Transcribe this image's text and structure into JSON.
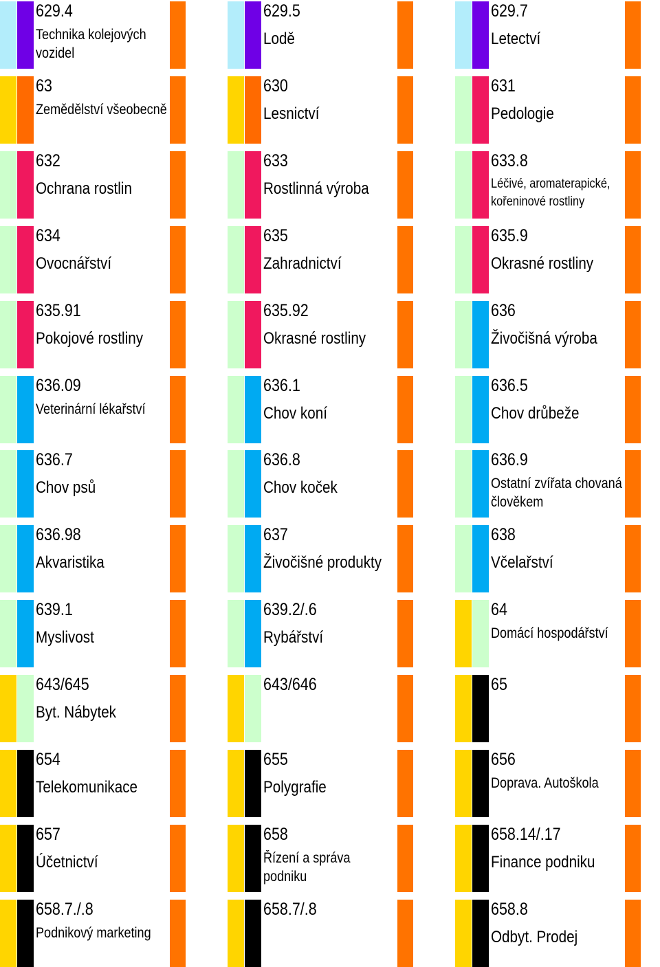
{
  "colors": {
    "light_blue": "#B3EDFB",
    "violet": "#6F00E6",
    "yellow": "#FFD500",
    "dark_orange": "#FF6A00",
    "light_green": "#CCFFCC",
    "crimson": "#F0185E",
    "sky_blue": "#00AAF2",
    "black": "#000000",
    "tab_orange": "#FF7300"
  },
  "cells": [
    {
      "code": "629.4",
      "name": "Technika kolejových vozidel",
      "size": "sm",
      "outer": "light_blue",
      "inner": "violet"
    },
    {
      "code": "629.5",
      "name": "Lodě",
      "size": "",
      "outer": "light_blue",
      "inner": "violet"
    },
    {
      "code": "629.7",
      "name": "Letectví",
      "size": "",
      "outer": "light_blue",
      "inner": "violet"
    },
    {
      "code": "63",
      "name": "Zemědělství všeobecně",
      "size": "sm",
      "outer": "yellow",
      "inner": "dark_orange"
    },
    {
      "code": "630",
      "name": "Lesnictví",
      "size": "",
      "outer": "yellow",
      "inner": "dark_orange"
    },
    {
      "code": "631",
      "name": "Pedologie",
      "size": "",
      "outer": "light_green",
      "inner": "crimson"
    },
    {
      "code": "632",
      "name": "Ochrana rostlin",
      "size": "",
      "outer": "light_green",
      "inner": "crimson"
    },
    {
      "code": "633",
      "name": "Rostlinná výroba",
      "size": "",
      "outer": "light_green",
      "inner": "crimson"
    },
    {
      "code": "633.8",
      "name": "Léčivé, aromaterapické, kořeninové rostliny",
      "size": "xs",
      "outer": "light_green",
      "inner": "crimson"
    },
    {
      "code": "634",
      "name": "Ovocnářství",
      "size": "",
      "outer": "light_green",
      "inner": "crimson"
    },
    {
      "code": "635",
      "name": "Zahradnictví",
      "size": "",
      "outer": "light_green",
      "inner": "crimson"
    },
    {
      "code": "635.9",
      "name": "Okrasné rostliny",
      "size": "",
      "outer": "light_green",
      "inner": "crimson"
    },
    {
      "code": "635.91",
      "name": "Pokojové rostliny",
      "size": "",
      "outer": "light_green",
      "inner": "crimson"
    },
    {
      "code": "635.92",
      "name": "Okrasné rostliny",
      "size": "",
      "outer": "light_green",
      "inner": "crimson"
    },
    {
      "code": "636",
      "name": "Živočišná výroba",
      "size": "",
      "outer": "light_green",
      "inner": "sky_blue"
    },
    {
      "code": "636.09",
      "name": "Veterinární lékařství",
      "size": "sm",
      "outer": "light_green",
      "inner": "sky_blue"
    },
    {
      "code": "636.1",
      "name": "Chov koní",
      "size": "",
      "outer": "light_green",
      "inner": "sky_blue"
    },
    {
      "code": "636.5",
      "name": "Chov drůbeže",
      "size": "",
      "outer": "light_green",
      "inner": "sky_blue"
    },
    {
      "code": "636.7",
      "name": "Chov psů",
      "size": "",
      "outer": "light_green",
      "inner": "sky_blue"
    },
    {
      "code": "636.8",
      "name": "Chov koček",
      "size": "",
      "outer": "light_green",
      "inner": "sky_blue"
    },
    {
      "code": "636.9",
      "name": "Ostatní zvířata chovaná člověkem",
      "size": "sm",
      "outer": "light_green",
      "inner": "sky_blue"
    },
    {
      "code": "636.98",
      "name": "Akvaristika",
      "size": "",
      "outer": "light_green",
      "inner": "sky_blue"
    },
    {
      "code": "637",
      "name": "Živočišné produkty",
      "size": "",
      "outer": "light_green",
      "inner": "sky_blue"
    },
    {
      "code": "638",
      "name": "Včelařství",
      "size": "",
      "outer": "light_green",
      "inner": "sky_blue"
    },
    {
      "code": "639.1",
      "name": "Myslivost",
      "size": "",
      "outer": "light_green",
      "inner": "sky_blue"
    },
    {
      "code": "639.2/.6",
      "name": "Rybářství",
      "size": "",
      "outer": "light_green",
      "inner": "sky_blue"
    },
    {
      "code": "64",
      "name": "Domácí hospodářství",
      "size": "sm",
      "outer": "yellow",
      "inner": "light_green"
    },
    {
      "code": "643/645",
      "name": "Byt. Nábytek",
      "size": "",
      "outer": "yellow",
      "inner": "light_green"
    },
    {
      "code": "643/646",
      "name": "",
      "size": "",
      "outer": "yellow",
      "inner": "light_green"
    },
    {
      "code": "65",
      "name": "",
      "size": "",
      "outer": "yellow",
      "inner": "black"
    },
    {
      "code": "654",
      "name": "Telekomunikace",
      "size": "",
      "outer": "yellow",
      "inner": "black"
    },
    {
      "code": "655",
      "name": "Polygrafie",
      "size": "",
      "outer": "yellow",
      "inner": "black"
    },
    {
      "code": "656",
      "name": "Doprava. Autoškola",
      "size": "sm",
      "outer": "yellow",
      "inner": "black"
    },
    {
      "code": "657",
      "name": "Účetnictví",
      "size": "",
      "outer": "yellow",
      "inner": "black"
    },
    {
      "code": "658",
      "name": "Řízení a správa podniku",
      "size": "sm",
      "outer": "yellow",
      "inner": "black"
    },
    {
      "code": "658.14/.17",
      "name": "Finance podniku",
      "size": "",
      "outer": "yellow",
      "inner": "black"
    },
    {
      "code": "658.7./.8",
      "name": "Podnikový marketing",
      "size": "sm",
      "outer": "yellow",
      "inner": "black"
    },
    {
      "code": "658.7/.8",
      "name": "",
      "size": "",
      "outer": "yellow",
      "inner": "black"
    },
    {
      "code": "658.8",
      "name": "Odbyt. Prodej",
      "size": "",
      "outer": "yellow",
      "inner": "black"
    }
  ]
}
